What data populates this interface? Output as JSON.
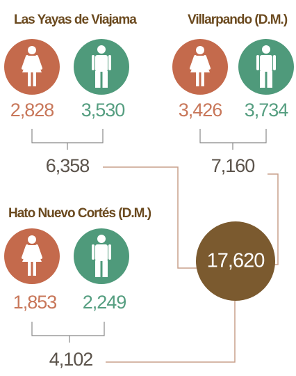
{
  "groups": [
    {
      "name": "Las Yayas de Viajama",
      "female": "2,828",
      "male": "3,530",
      "total": "6,358"
    },
    {
      "name": "Villarpando (D.M.)",
      "female": "3,426",
      "male": "3,734",
      "total": "7,160"
    },
    {
      "name": "Hato Nuevo Cortés (D.M.)",
      "female": "1,853",
      "male": "2,249",
      "total": "4,102"
    }
  ],
  "grand_total": "17,620"
}
